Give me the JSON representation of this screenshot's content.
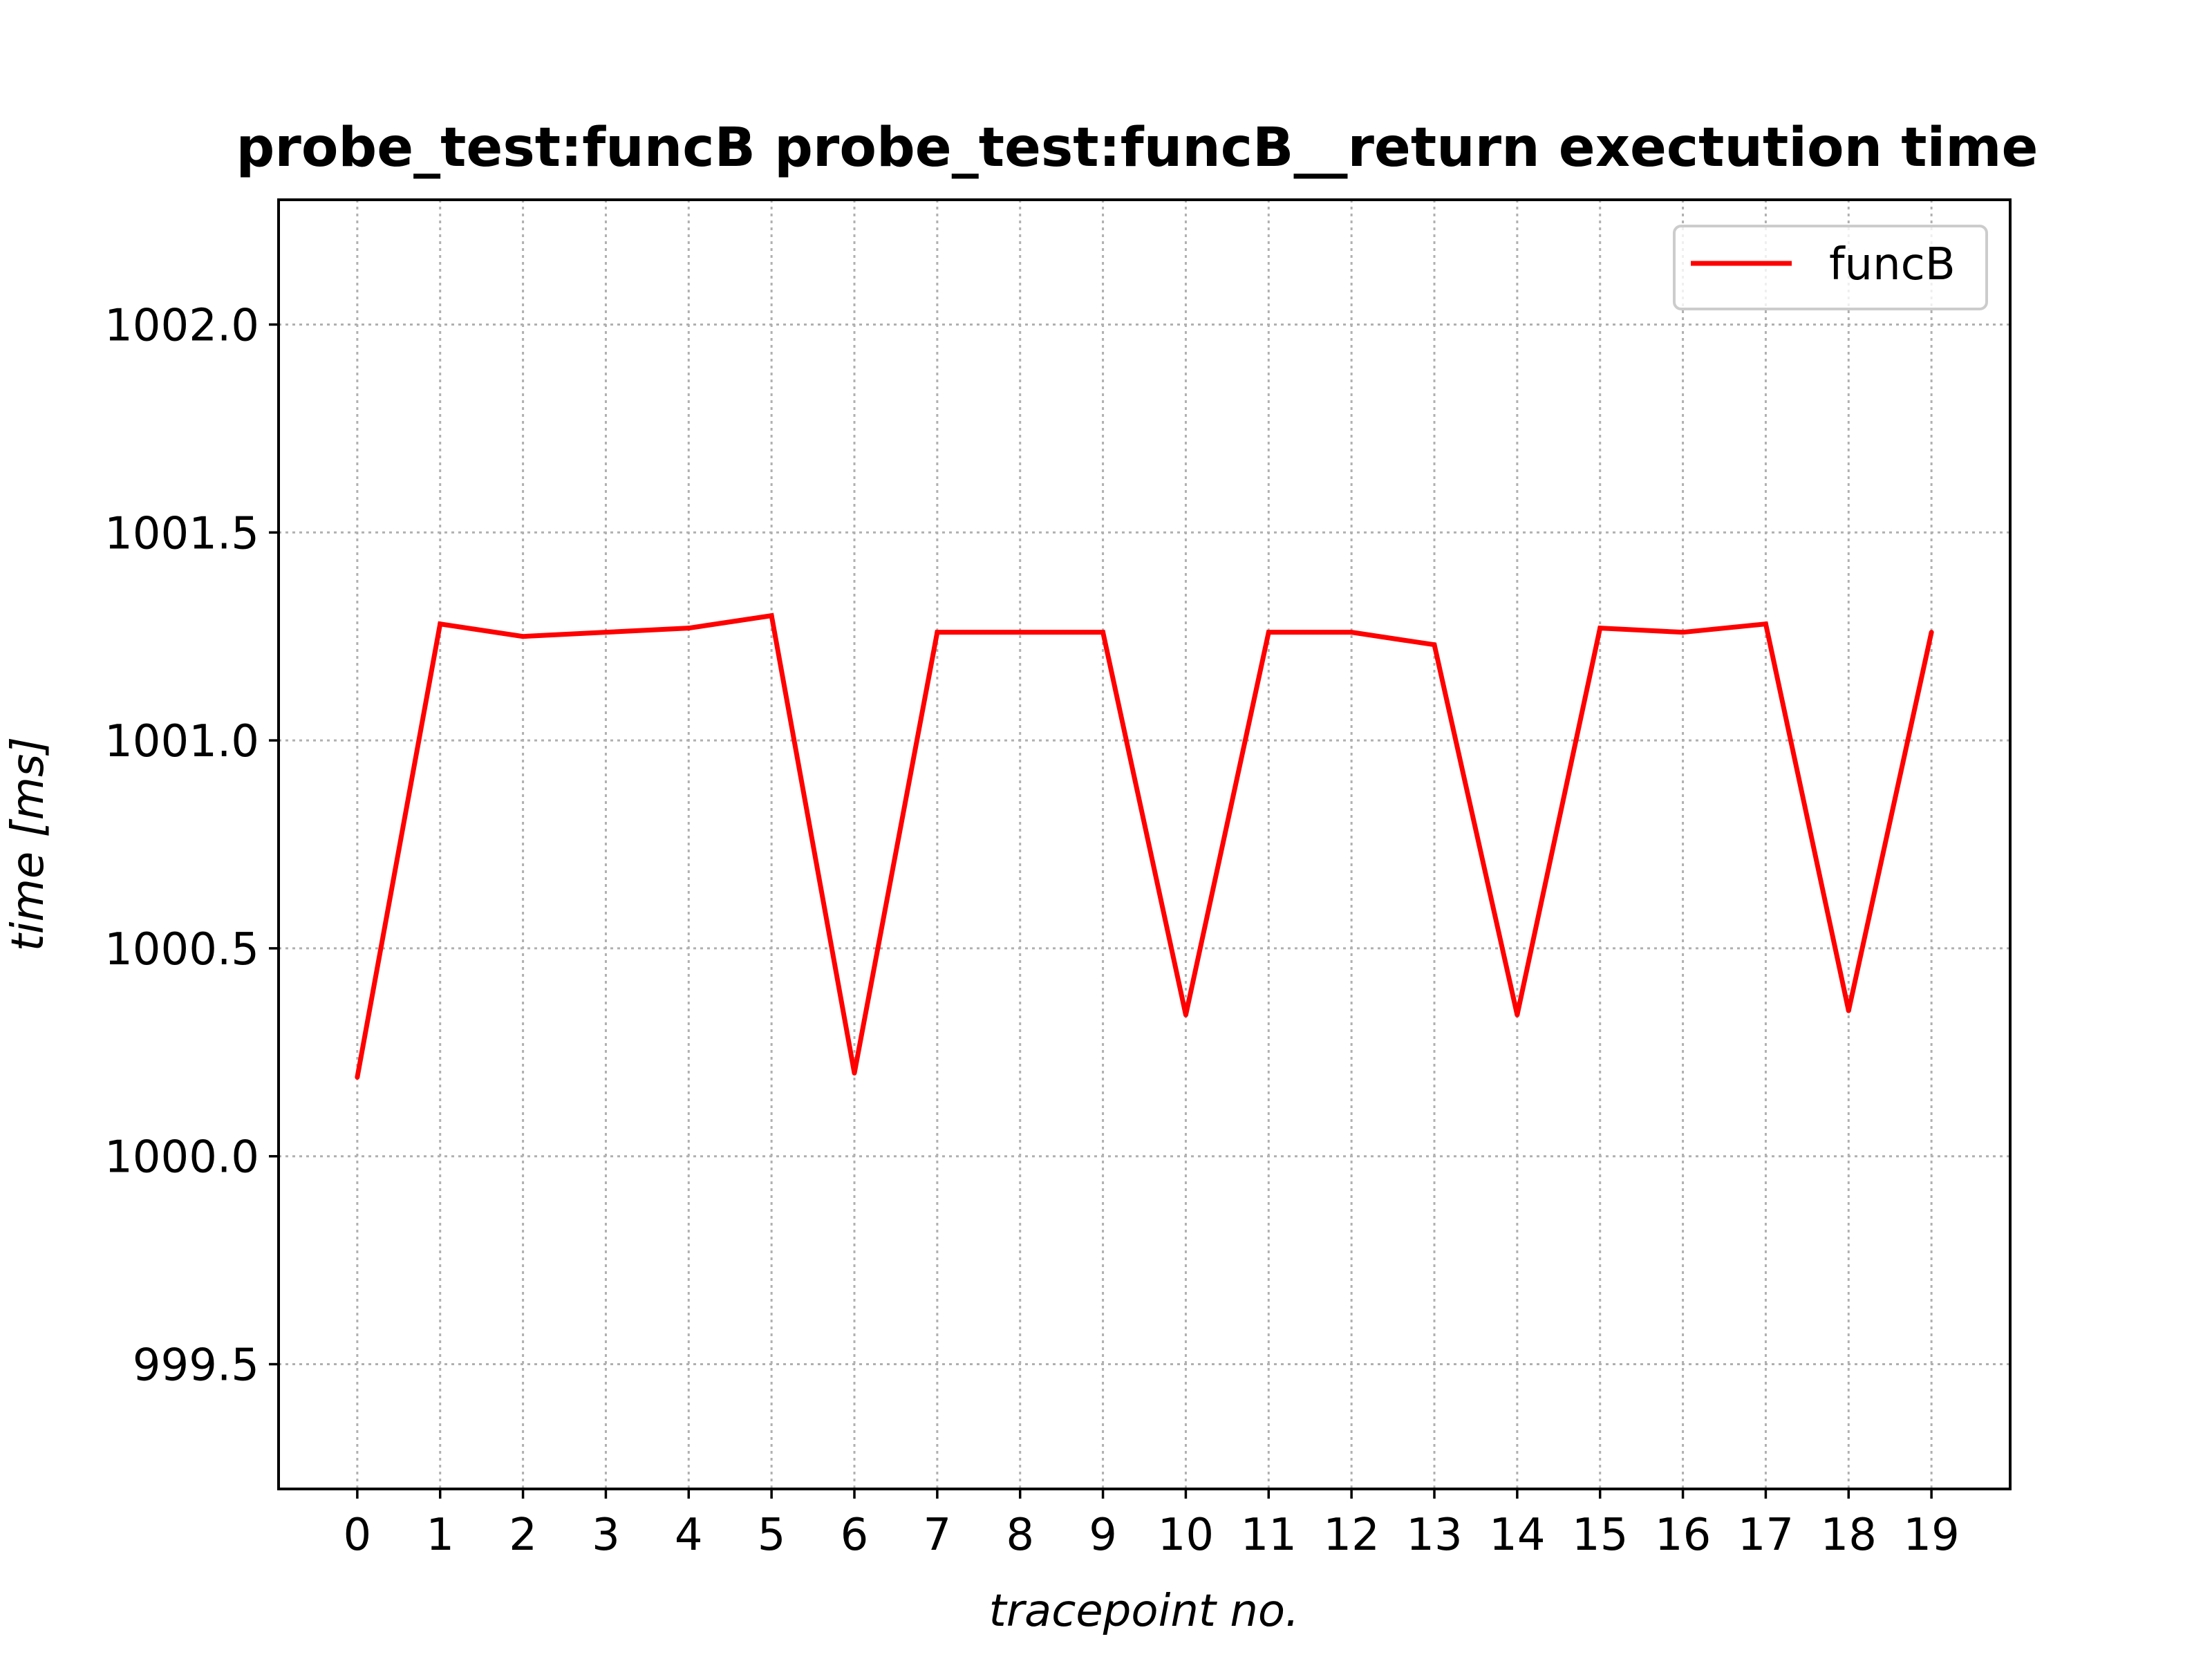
{
  "chart_data": {
    "type": "line",
    "title": "probe_test:funcB probe_test:funcB__return exectution time",
    "xlabel": "tracepoint no.",
    "ylabel": "time [ms]",
    "x": [
      0,
      1,
      2,
      3,
      4,
      5,
      6,
      7,
      8,
      9,
      10,
      11,
      12,
      13,
      14,
      15,
      16,
      17,
      18,
      19
    ],
    "xticks": [
      "0",
      "1",
      "2",
      "3",
      "4",
      "5",
      "6",
      "7",
      "8",
      "9",
      "10",
      "11",
      "12",
      "13",
      "14",
      "15",
      "16",
      "17",
      "18",
      "19"
    ],
    "yticks": [
      "999.5",
      "1000.0",
      "1000.5",
      "1001.0",
      "1001.5",
      "1002.0"
    ],
    "ytick_values": [
      999.5,
      1000.0,
      1000.5,
      1001.0,
      1001.5,
      1002.0
    ],
    "xlim": [
      -0.95,
      19.95
    ],
    "ylim": [
      999.2,
      1002.3
    ],
    "grid": true,
    "legend_position": "top-right",
    "series": [
      {
        "name": "funcB",
        "color": "#ff0000",
        "values": [
          1000.19,
          1001.28,
          1001.25,
          1001.26,
          1001.27,
          1001.3,
          1000.2,
          1001.26,
          1001.26,
          1001.26,
          1000.34,
          1001.26,
          1001.26,
          1001.23,
          1000.34,
          1001.27,
          1001.26,
          1001.28,
          1000.35,
          1001.26
        ]
      }
    ]
  }
}
